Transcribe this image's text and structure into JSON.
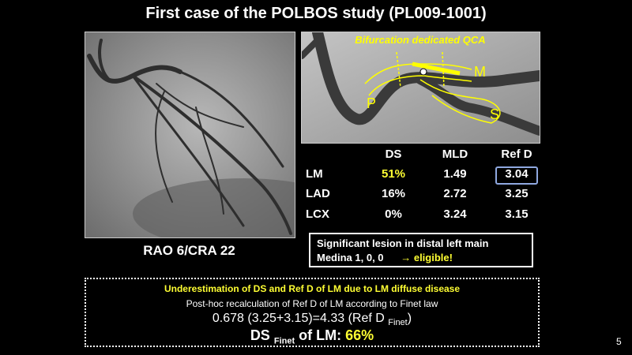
{
  "title": "First case of the POLBOS study (PL009-1001)",
  "left_image": {
    "caption": "RAO 6/CRA 22"
  },
  "right_image": {
    "label": "Bifurcation dedicated QCA",
    "markers": [
      "P",
      "M",
      "S"
    ]
  },
  "table": {
    "header": [
      "DS",
      "MLD",
      "Ref D"
    ],
    "rows": [
      [
        "LM",
        "51%",
        "1.49",
        "3.04"
      ],
      [
        "LAD",
        "16%",
        "2.72",
        "3.25"
      ],
      [
        "LCX",
        "0%",
        "3.24",
        "3.15"
      ]
    ]
  },
  "conclusion": {
    "line1": "Significant lesion in distal left main",
    "line2": "Medina 1, 0, 0",
    "arrow": "→",
    "eligible": "eligible!"
  },
  "note": {
    "headline": "Underestimation  of DS and Ref D of LM due to LM diffuse disease",
    "subline": "Post-hoc recalculation of Ref D of LM according to Finet law",
    "formula": "0.678 (3.25+3.15)=4.33 (Ref D",
    "formula_sub": "Finet",
    "formula_end": ")",
    "result_prefix": "DS",
    "result_sub": "Finet",
    "result_mid": "of LM:",
    "result_value": "66%"
  },
  "page_number": "5"
}
